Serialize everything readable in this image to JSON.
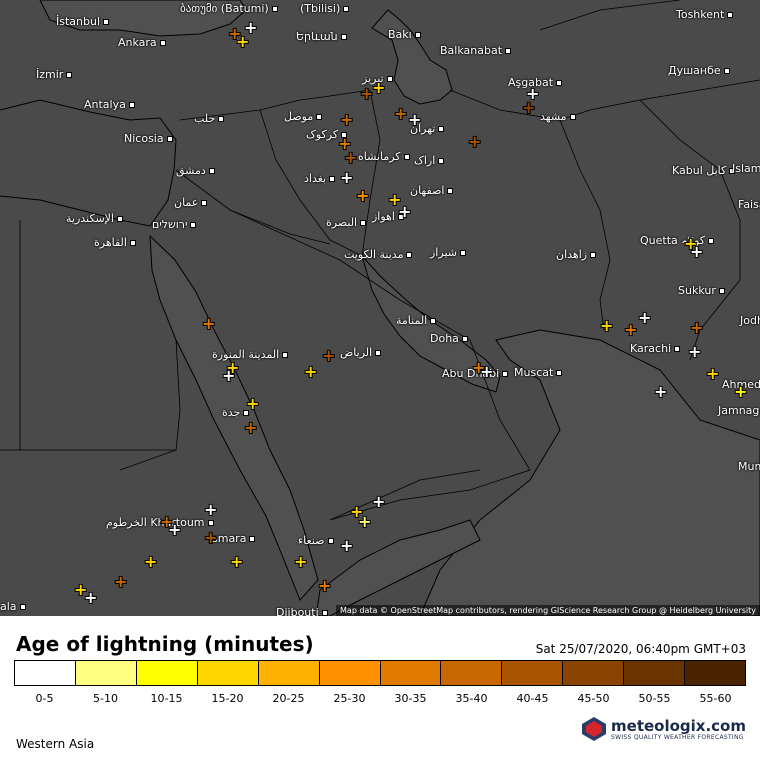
{
  "legend": {
    "title": "Age of lightning (minutes)",
    "timestamp": "Sat 25/07/2020, 06:40pm GMT+03",
    "bins": [
      {
        "label": "0-5",
        "color": "#ffffff"
      },
      {
        "label": "5-10",
        "color": "#ffff80"
      },
      {
        "label": "10-15",
        "color": "#ffff00"
      },
      {
        "label": "15-20",
        "color": "#ffd700"
      },
      {
        "label": "20-25",
        "color": "#ffb000"
      },
      {
        "label": "25-30",
        "color": "#ff9000"
      },
      {
        "label": "30-35",
        "color": "#e07a00"
      },
      {
        "label": "35-40",
        "color": "#c86800"
      },
      {
        "label": "40-45",
        "color": "#a85400"
      },
      {
        "label": "45-50",
        "color": "#8a4300"
      },
      {
        "label": "50-55",
        "color": "#6a3300"
      },
      {
        "label": "55-60",
        "color": "#4a2400"
      }
    ]
  },
  "region": "Western Asia",
  "brand": {
    "name": "meteologix.com",
    "tagline": "SWISS QUALITY WEATHER FORECASTING"
  },
  "attribution": "Map data © OpenStreetMap contributors, rendering GIScience Research Group @ Heidelberg University",
  "cities": [
    {
      "id": "istanbul",
      "name": "İstanbul"
    },
    {
      "id": "batumi",
      "name": "ბათუმი (Batumi)"
    },
    {
      "id": "tbilisi",
      "name": "(Tbilisi)"
    },
    {
      "id": "ankara",
      "name": "Ankara"
    },
    {
      "id": "yerevan",
      "name": "Երևան"
    },
    {
      "id": "baku",
      "name": "Bakı"
    },
    {
      "id": "balkanabat",
      "name": "Balkanabat"
    },
    {
      "id": "toshkent",
      "name": "Toshkent"
    },
    {
      "id": "izmir",
      "name": "İzmir"
    },
    {
      "id": "dushanbe",
      "name": "Душанбе"
    },
    {
      "id": "tabriz",
      "name": "تبریز"
    },
    {
      "id": "ashgabat",
      "name": "Aşgabat"
    },
    {
      "id": "antalya",
      "name": "Antalya"
    },
    {
      "id": "mosul",
      "name": "موصل"
    },
    {
      "id": "aleppo",
      "name": "حلب"
    },
    {
      "id": "mashhad",
      "name": "مشهد"
    },
    {
      "id": "kirkuk",
      "name": "کرکوک"
    },
    {
      "id": "tehran",
      "name": "تهران"
    },
    {
      "id": "nicosia",
      "name": "Nicosia"
    },
    {
      "id": "kermanshah",
      "name": "کرمانشاه"
    },
    {
      "id": "arak",
      "name": "اراک"
    },
    {
      "id": "damascus",
      "name": "دمشق"
    },
    {
      "id": "baghdad",
      "name": "بغداد"
    },
    {
      "id": "kabul",
      "name": "Kabul کابل"
    },
    {
      "id": "islamabad",
      "name": "Islam"
    },
    {
      "id": "isfahan",
      "name": "اصفهان"
    },
    {
      "id": "amman",
      "name": "عمان"
    },
    {
      "id": "faisalabad",
      "name": "Faisa"
    },
    {
      "id": "alexandria",
      "name": "الإسكندرية"
    },
    {
      "id": "jerusalem",
      "name": "ירושלים"
    },
    {
      "id": "ahvaz",
      "name": "اهواز"
    },
    {
      "id": "basra",
      "name": "البصرة"
    },
    {
      "id": "cairo",
      "name": "القاهرة"
    },
    {
      "id": "quetta",
      "name": "Quetta کوئٹہ"
    },
    {
      "id": "kuwait",
      "name": "مدينة الكويت"
    },
    {
      "id": "shiraz",
      "name": "شیراز"
    },
    {
      "id": "zahedan",
      "name": "زاهدان"
    },
    {
      "id": "sukkur",
      "name": "Sukkur"
    },
    {
      "id": "manama",
      "name": "المنامة"
    },
    {
      "id": "jodhpur",
      "name": "Jodh"
    },
    {
      "id": "doha",
      "name": "Doha"
    },
    {
      "id": "medina",
      "name": "المدينة المنورة"
    },
    {
      "id": "riyadh",
      "name": "الرياض"
    },
    {
      "id": "karachi",
      "name": "Karachi"
    },
    {
      "id": "abudhabi",
      "name": "Abu Dhabi"
    },
    {
      "id": "muscat",
      "name": "Muscat"
    },
    {
      "id": "ahmedabad",
      "name": "Ahmed"
    },
    {
      "id": "jeddah",
      "name": "جدة"
    },
    {
      "id": "jamnagar",
      "name": "Jamnaga"
    },
    {
      "id": "mumbai",
      "name": "Mum"
    },
    {
      "id": "khartoum",
      "name": "الخرطوم Khartoum"
    },
    {
      "id": "sanaa",
      "name": "صنعاء"
    },
    {
      "id": "asmara",
      "name": "smara"
    },
    {
      "id": "djibouti",
      "name": "Djibouti"
    },
    {
      "id": "dire",
      "name": "ala"
    }
  ],
  "strikes": [
    {
      "area": "batumi",
      "color": "#ffffff"
    },
    {
      "area": "batumi",
      "color": "#ffd700"
    },
    {
      "area": "batumi",
      "color": "#c86800"
    },
    {
      "area": "tabriz-east",
      "color": "#ffd700"
    },
    {
      "area": "tabriz-east",
      "color": "#a85400"
    },
    {
      "area": "caspian-sw",
      "color": "#c86800"
    },
    {
      "area": "tehran",
      "color": "#ffffff"
    },
    {
      "area": "ashgabat",
      "color": "#ffffff"
    },
    {
      "area": "ashgabat",
      "color": "#8a4300"
    },
    {
      "area": "kirkuk",
      "color": "#c86800"
    },
    {
      "area": "kermanshah",
      "color": "#e07a00"
    },
    {
      "area": "kermanshah",
      "color": "#a85400"
    },
    {
      "area": "baghdad-east",
      "color": "#ffffff"
    },
    {
      "area": "iran-central",
      "color": "#a85400"
    },
    {
      "area": "ahvaz",
      "color": "#ffffff"
    },
    {
      "area": "ahvaz",
      "color": "#ffd700"
    },
    {
      "area": "ahvaz",
      "color": "#ff9000"
    },
    {
      "area": "quetta",
      "color": "#ffffff"
    },
    {
      "area": "quetta",
      "color": "#ffd700"
    },
    {
      "area": "karachi",
      "color": "#ffffff"
    },
    {
      "area": "karachi",
      "color": "#ffd700"
    },
    {
      "area": "karachi",
      "color": "#e07a00"
    },
    {
      "area": "sindh",
      "color": "#ffffff"
    },
    {
      "area": "sindh",
      "color": "#ffd700"
    },
    {
      "area": "sindh",
      "color": "#c86800"
    },
    {
      "area": "ahmedabad",
      "color": "#ffff00"
    },
    {
      "area": "gujarat",
      "color": "#ffffff"
    },
    {
      "area": "medina",
      "color": "#ffffff"
    },
    {
      "area": "medina",
      "color": "#ffd700"
    },
    {
      "area": "medina-north",
      "color": "#e07a00"
    },
    {
      "area": "riyadh-west",
      "color": "#ffd700"
    },
    {
      "area": "riyadh",
      "color": "#a85400"
    },
    {
      "area": "jeddah",
      "color": "#ffd700"
    },
    {
      "area": "jeddah",
      "color": "#c86800"
    },
    {
      "area": "abudhabi",
      "color": "#ffffff"
    },
    {
      "area": "abudhabi",
      "color": "#e07a00"
    },
    {
      "area": "khartoum",
      "color": "#ffffff"
    },
    {
      "area": "khartoum",
      "color": "#ffd700"
    },
    {
      "area": "khartoum",
      "color": "#c86800"
    },
    {
      "area": "eritrea",
      "color": "#ffffff"
    },
    {
      "area": "eritrea",
      "color": "#ffd700"
    },
    {
      "area": "eritrea",
      "color": "#a85400"
    },
    {
      "area": "sanaa",
      "color": "#ffffff"
    },
    {
      "area": "sanaa",
      "color": "#ffff80"
    },
    {
      "area": "sanaa",
      "color": "#ffd700"
    },
    {
      "area": "sanaa",
      "color": "#e07a00"
    },
    {
      "area": "yemen-north",
      "color": "#ffffff"
    },
    {
      "area": "yemen-north",
      "color": "#ffd700"
    },
    {
      "area": "ethiopia",
      "color": "#ffffff"
    },
    {
      "area": "ethiopia",
      "color": "#ffd700"
    },
    {
      "area": "ethiopia",
      "color": "#c86800"
    }
  ]
}
